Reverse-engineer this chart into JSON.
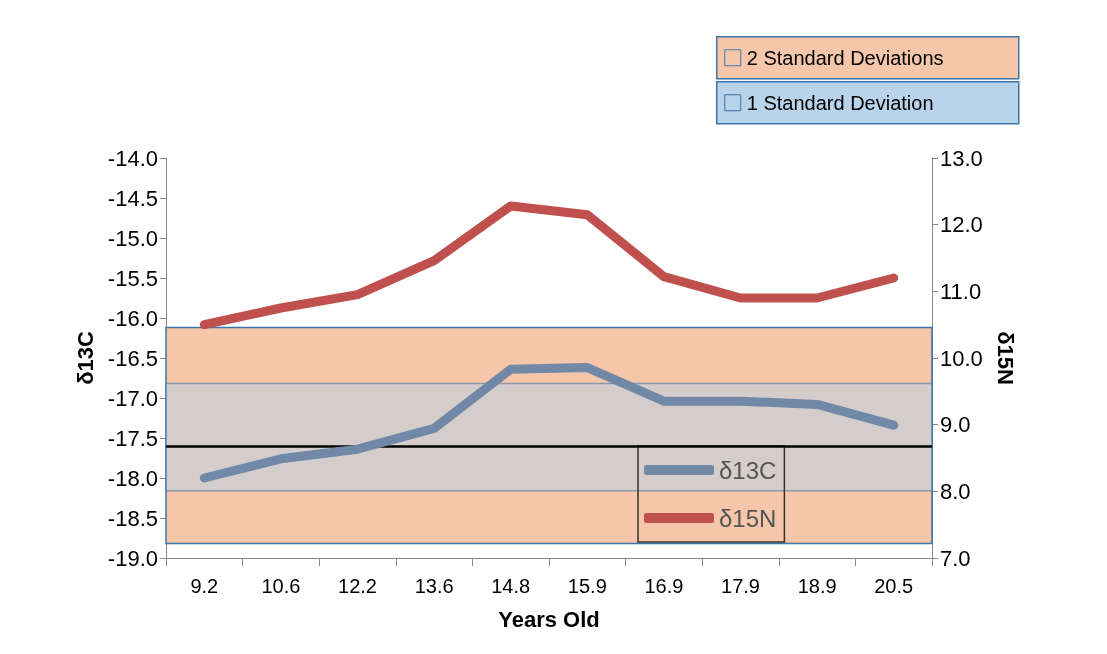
{
  "chart_data": {
    "type": "line",
    "xlabel": "Years Old",
    "ylabel": "δ13C",
    "y2label": "δ15N",
    "categories": [
      "9.2",
      "10.6",
      "12.2",
      "13.6",
      "14.8",
      "15.9",
      "16.9",
      "17.9",
      "18.9",
      "20.5"
    ],
    "series": [
      {
        "name": "δ13C",
        "color": "#7189a6",
        "values": [
          -18.0,
          -17.76,
          -17.64,
          -17.38,
          -16.64,
          -16.62,
          -17.04,
          -17.04,
          -17.08,
          -17.34
        ]
      },
      {
        "name": "δ15N",
        "color": "#c0504d",
        "axis": "y2",
        "values": [
          10.5,
          10.75,
          10.95,
          11.46,
          12.28,
          12.15,
          11.22,
          10.9,
          10.9,
          11.2
        ]
      }
    ],
    "ylim": [
      -19,
      -14
    ],
    "yticks": [
      {
        "value": -19,
        "label": "-19.0"
      },
      {
        "value": -18.5,
        "label": "-18.5"
      },
      {
        "value": -18,
        "label": "-18.0"
      },
      {
        "value": -17.5,
        "label": "-17.5"
      },
      {
        "value": -17,
        "label": "-17.0"
      },
      {
        "value": -16.5,
        "label": "-16.5"
      },
      {
        "value": -16,
        "label": "-16.0"
      },
      {
        "value": -15.5,
        "label": "-15.5"
      },
      {
        "value": -15,
        "label": "-15.0"
      },
      {
        "value": -14.5,
        "label": "-14.5"
      },
      {
        "value": -14,
        "label": "-14.0"
      }
    ],
    "y2lim": [
      7,
      13
    ],
    "y2ticks": [
      {
        "value": 7,
        "label": "7.0"
      },
      {
        "value": 8,
        "label": "8.0"
      },
      {
        "value": 9,
        "label": "9.0"
      },
      {
        "value": 10,
        "label": "10.0"
      },
      {
        "value": 11,
        "label": "11.0"
      },
      {
        "value": 12,
        "label": "12.0"
      },
      {
        "value": 13,
        "label": "13.0"
      }
    ],
    "bands": [
      {
        "axis": "y",
        "from": -18.82,
        "to": -16.12,
        "label": "2 Standard Deviations",
        "color": "#f5c6a9"
      },
      {
        "axis": "y",
        "from": -18.16,
        "to": -16.82,
        "label": "1 Standard Deviation",
        "color": "#b8d3ea"
      }
    ],
    "ref_lines": [
      {
        "axis": "y",
        "value": -17.6,
        "color": "#000000"
      }
    ],
    "legend": "top right",
    "grid": false,
    "marker": "none",
    "line_style": "solid"
  }
}
